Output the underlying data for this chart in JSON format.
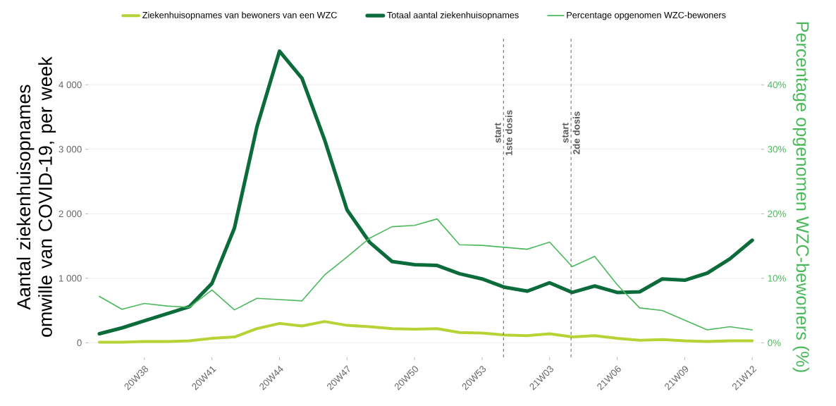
{
  "chart_data": {
    "type": "line",
    "categories": [
      null,
      null,
      "20W38",
      null,
      null,
      "20W41",
      null,
      null,
      "20W44",
      null,
      null,
      "20W47",
      null,
      null,
      "20W50",
      null,
      null,
      "20W53",
      null,
      null,
      "21W03",
      null,
      null,
      "21W06",
      null,
      null,
      "21W09",
      null,
      null,
      "21W12"
    ],
    "series": [
      {
        "name": "Ziekenhuisopnames van bewoners van een WZC",
        "color": "#b5d334",
        "values": [
          10,
          10,
          20,
          20,
          30,
          70,
          90,
          220,
          300,
          260,
          330,
          270,
          250,
          220,
          210,
          220,
          160,
          150,
          120,
          110,
          140,
          90,
          110,
          70,
          40,
          50,
          30,
          20,
          30,
          30
        ]
      },
      {
        "name": "Totaal aantal ziekenhuisopnames",
        "color": "#0b6b3a",
        "values": [
          140,
          230,
          340,
          450,
          560,
          920,
          1780,
          3350,
          4520,
          4100,
          3150,
          2060,
          1560,
          1260,
          1210,
          1200,
          1070,
          990,
          860,
          800,
          930,
          780,
          880,
          780,
          790,
          990,
          970,
          1080,
          1300,
          1590
        ]
      },
      {
        "name": "Percentage opgenomen WZC-bewoners",
        "color": "#4cb85c",
        "axis": "y2",
        "values": [
          7.2,
          5.2,
          6.1,
          5.7,
          5.5,
          8.2,
          5.1,
          6.9,
          6.7,
          6.5,
          10.5,
          13.3,
          16.2,
          18.0,
          18.2,
          19.2,
          15.2,
          15.1,
          14.8,
          14.5,
          15.6,
          11.8,
          13.4,
          9.0,
          5.4,
          5.0,
          3.5,
          2.0,
          2.5,
          2.0
        ]
      }
    ],
    "ylabel": "Aantal ziekenhuisopnames omwille van COVID-19, per week",
    "y2label": "Percentage opgenomen WZC-bewoners (%)",
    "ylim": [
      -226,
      4746
    ],
    "yticks": [
      {
        "value": 0,
        "label": "0"
      },
      {
        "value": 1000,
        "label": "1 000"
      },
      {
        "value": 2000,
        "label": "2 000"
      },
      {
        "value": 3000,
        "label": "3 000"
      },
      {
        "value": 4000,
        "label": "4 000"
      }
    ],
    "y2lim": [
      -2.26,
      47.46
    ],
    "y2ticks": [
      {
        "value": 0,
        "label": "0%"
      },
      {
        "value": 10,
        "label": "10%"
      },
      {
        "value": 20,
        "label": "20%"
      },
      {
        "value": 30,
        "label": "30%"
      },
      {
        "value": 40,
        "label": "40%"
      }
    ],
    "annotations": [
      "start 1ste dosis",
      "start 2de dosis"
    ],
    "grid": "y",
    "legend": "top"
  }
}
